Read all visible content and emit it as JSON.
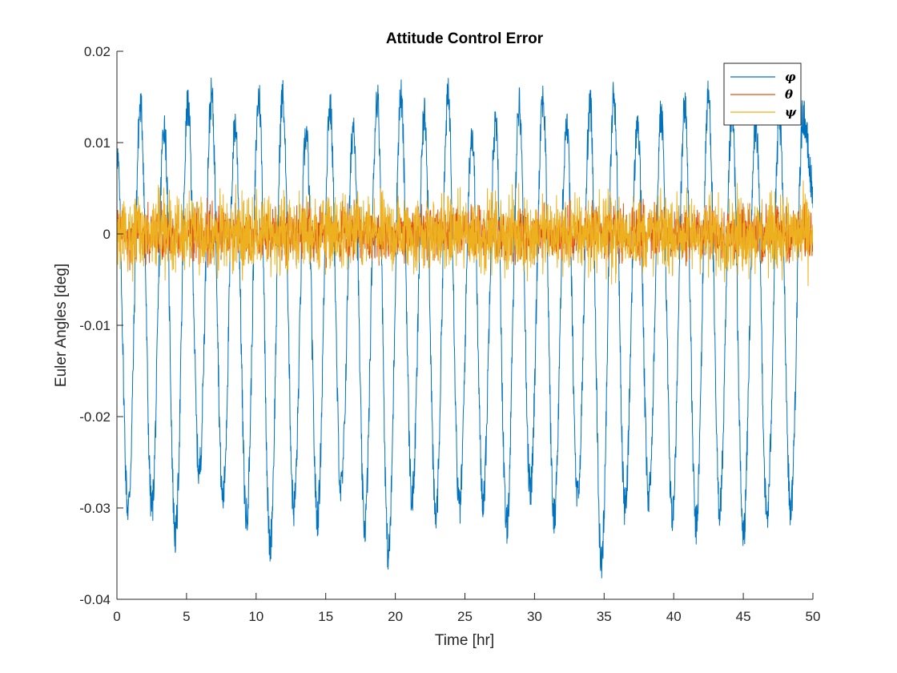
{
  "chart_data": {
    "type": "line",
    "title": "Attitude Control Error",
    "xlabel": "Time [hr]",
    "ylabel": "Euler Angles [deg]",
    "xlim": [
      0,
      50
    ],
    "ylim": [
      -0.04,
      0.02
    ],
    "xticks": [
      0,
      5,
      10,
      15,
      20,
      25,
      30,
      35,
      40,
      45,
      50
    ],
    "yticks": [
      0.02,
      0.01,
      0,
      -0.01,
      -0.02,
      -0.03,
      -0.04
    ],
    "xtick_labels": [
      "0",
      "5",
      "10",
      "15",
      "20",
      "25",
      "30",
      "35",
      "40",
      "45",
      "50"
    ],
    "ytick_labels": [
      "0.02",
      "0.01",
      "0",
      "-0.01",
      "-0.02",
      "-0.03",
      "-0.04"
    ],
    "grid": false,
    "legend_position": "top-right",
    "series": [
      {
        "name": "φ",
        "color": "#0072BD",
        "x": [
          0,
          0.8,
          1.7,
          2.5,
          3.4,
          4.2,
          5.1,
          5.9,
          6.8,
          7.6,
          8.5,
          9.3,
          10.2,
          11.0,
          11.9,
          12.7,
          13.6,
          14.4,
          15.3,
          16.1,
          17.0,
          17.8,
          18.7,
          19.5,
          20.4,
          21.2,
          22.1,
          22.9,
          23.8,
          24.6,
          25.5,
          26.3,
          27.2,
          28.0,
          28.9,
          29.7,
          30.6,
          31.4,
          32.3,
          33.1,
          34.0,
          34.8,
          35.7,
          36.5,
          37.4,
          38.2,
          39.1,
          39.9,
          40.8,
          41.6,
          42.5,
          43.3,
          44.2,
          45.0,
          45.9,
          46.7,
          47.6,
          48.4,
          49.3,
          50.0
        ],
        "y": [
          0.009,
          -0.03,
          0.014,
          -0.03,
          0.012,
          -0.033,
          0.014,
          -0.026,
          0.015,
          -0.029,
          0.012,
          -0.031,
          0.015,
          -0.034,
          0.015,
          -0.03,
          0.011,
          -0.031,
          0.014,
          -0.028,
          0.012,
          -0.032,
          0.015,
          -0.035,
          0.015,
          -0.029,
          0.013,
          -0.031,
          0.015,
          -0.03,
          0.011,
          -0.029,
          0.012,
          -0.032,
          0.014,
          -0.028,
          0.015,
          -0.031,
          0.012,
          -0.029,
          0.014,
          -0.036,
          0.015,
          -0.03,
          0.012,
          -0.029,
          0.013,
          -0.031,
          0.014,
          -0.032,
          0.015,
          -0.03,
          0.013,
          -0.033,
          0.012,
          -0.031,
          0.012,
          -0.03,
          0.013,
          0.005
        ],
        "envelope": {
          "upper": 0.012,
          "lower": -0.03,
          "cycles": 29
        }
      },
      {
        "name": "θ",
        "color": "#D95319",
        "envelope": {
          "upper": 0.004,
          "lower": -0.005
        }
      },
      {
        "name": "ψ",
        "color": "#EDB120",
        "envelope": {
          "upper": 0.007,
          "lower": -0.007
        }
      }
    ]
  }
}
